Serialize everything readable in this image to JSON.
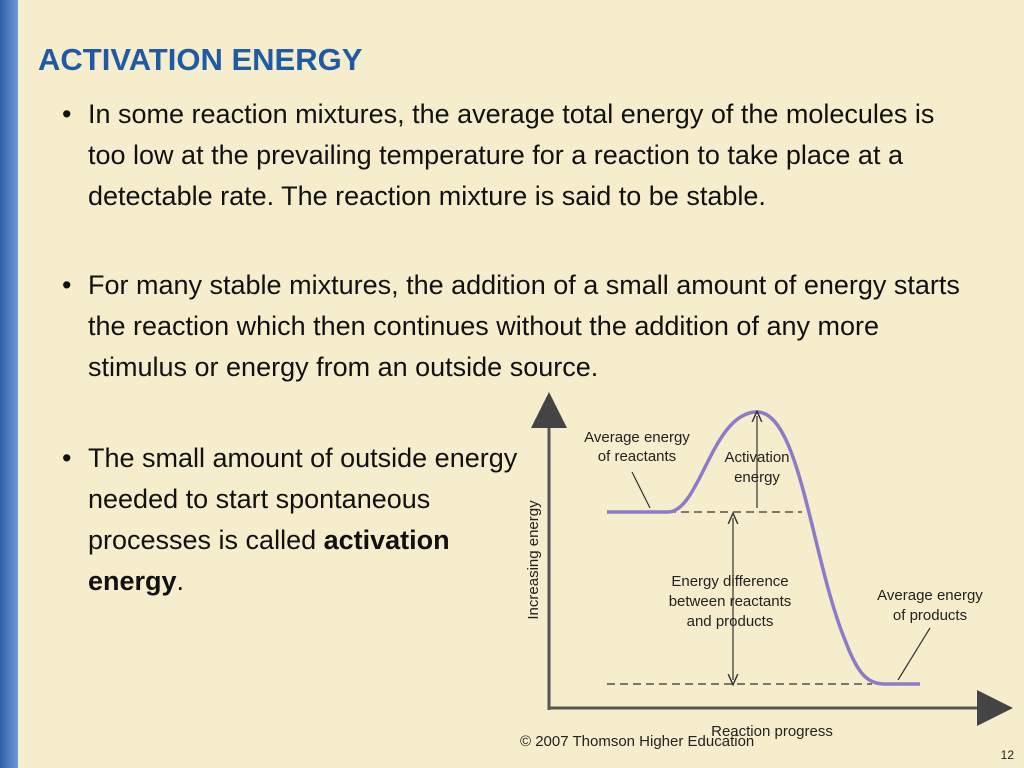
{
  "header": {
    "title": "ACTIVATION ENERGY"
  },
  "bullets": [
    {
      "text": "In some reaction mixtures, the average total energy of the molecules is too low at the prevailing temperature for a reaction to take place at a detectable rate.  The reaction mixture is said to be stable."
    },
    {
      "text": "For many stable mixtures, the addition of a small amount of energy starts the reaction which then continues without the addition of any more stimulus or energy from an outside source."
    },
    {
      "text": "The small amount of outside energy needed to start spontaneous processes is called ",
      "bold": "activation energy",
      "tail": "."
    }
  ],
  "diagram": {
    "y_axis_label": "Increasing energy",
    "x_axis_label": "Reaction progress",
    "reactants_label": [
      "Average energy",
      "of reactants"
    ],
    "activation_label": [
      "Activation",
      "energy"
    ],
    "difference_label": [
      "Energy difference",
      "between reactants",
      "and products"
    ],
    "products_label": [
      "Average energy",
      "of products"
    ],
    "credit": "© 2007 Thomson Higher Education"
  },
  "footer": {
    "page_number": "12"
  }
}
